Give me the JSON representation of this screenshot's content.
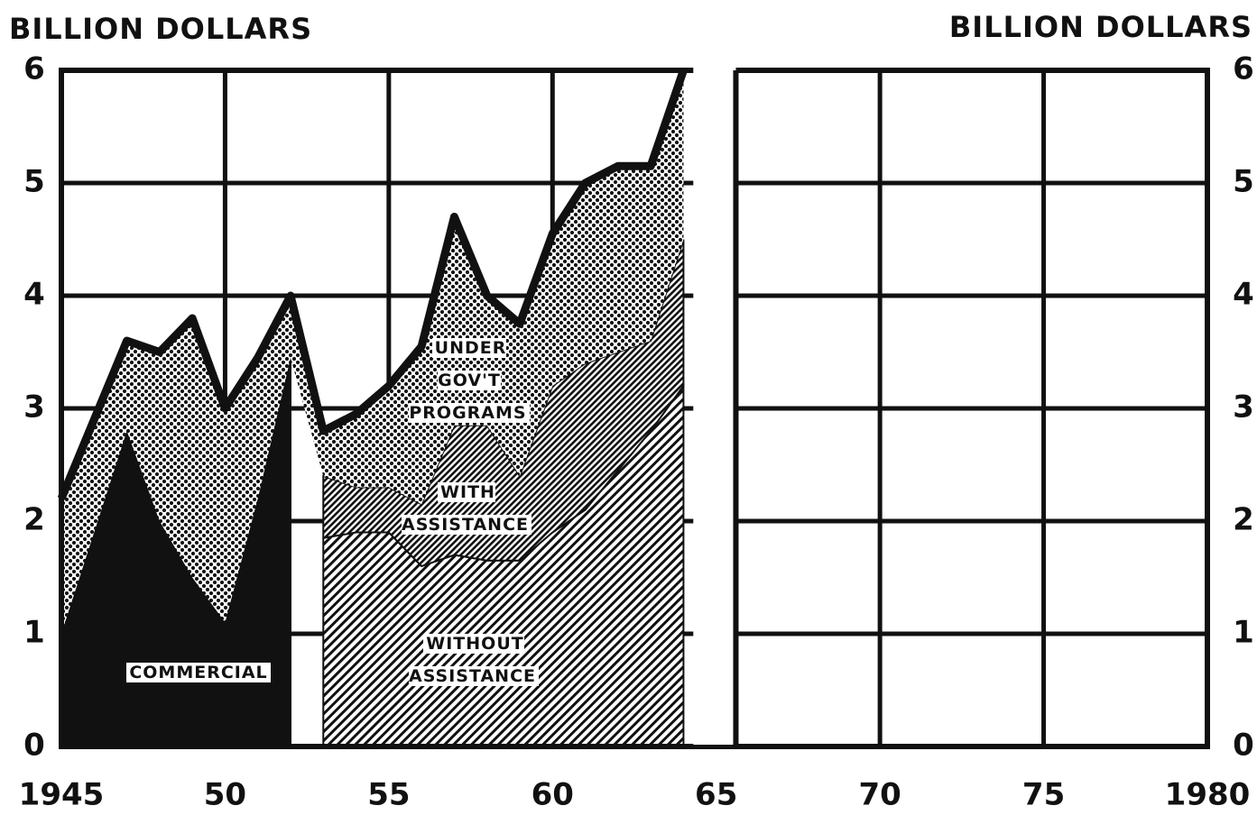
{
  "chart_data": {
    "type": "stacked_area",
    "y_label": "BILLION DOLLARS",
    "y2_label": "BILLION DOLLARS",
    "x": [
      1945,
      1946,
      1947,
      1948,
      1949,
      1950,
      1951,
      1952,
      1953,
      1954,
      1955,
      1956,
      1957,
      1958,
      1959,
      1960,
      1961,
      1962,
      1963,
      1964
    ],
    "series": [
      {
        "name": "COMMERCIAL",
        "color": "#111111",
        "pattern": "solid",
        "values": [
          1.0,
          1.9,
          2.8,
          2.0,
          1.5,
          1.1,
          2.2,
          3.45,
          null,
          null,
          null,
          null,
          null,
          null,
          null,
          null,
          null,
          null,
          null,
          null
        ]
      },
      {
        "name": "WITHOUT ASSISTANCE",
        "color": "#111111",
        "pattern": "hatch",
        "values": [
          null,
          null,
          null,
          null,
          null,
          null,
          null,
          null,
          1.85,
          1.9,
          1.9,
          1.6,
          1.7,
          1.65,
          1.65,
          1.9,
          2.1,
          2.45,
          2.8,
          3.2
        ]
      },
      {
        "name": "WITH ASSISTANCE",
        "color": "#111111",
        "pattern": "dense-hatch",
        "values": [
          null,
          null,
          null,
          null,
          null,
          null,
          null,
          null,
          0.55,
          0.4,
          0.4,
          0.55,
          1.15,
          1.2,
          0.75,
          1.3,
          1.3,
          1.05,
          0.8,
          1.3
        ]
      },
      {
        "name": "UNDER GOV'T PROGRAMS",
        "color": "#111111",
        "pattern": "dots",
        "values": [
          1.2,
          1.0,
          0.8,
          1.5,
          2.3,
          1.9,
          1.25,
          0.55,
          0.4,
          0.65,
          0.9,
          1.4,
          1.85,
          1.15,
          1.35,
          1.35,
          1.6,
          1.65,
          1.55,
          1.5
        ]
      }
    ],
    "xlim": [
      1945,
      1980
    ],
    "xticks": [
      1945,
      {
        "value": 1950,
        "label": "50"
      },
      {
        "value": 1955,
        "label": "55"
      },
      {
        "value": 1960,
        "label": "60"
      },
      {
        "value": 1965,
        "label": "65"
      },
      {
        "value": 1970,
        "label": "70"
      },
      {
        "value": 1975,
        "label": "75"
      },
      1980
    ],
    "ylim": [
      0,
      6
    ],
    "yticks": [
      0,
      1,
      2,
      3,
      4,
      5,
      6
    ],
    "grid": true
  }
}
